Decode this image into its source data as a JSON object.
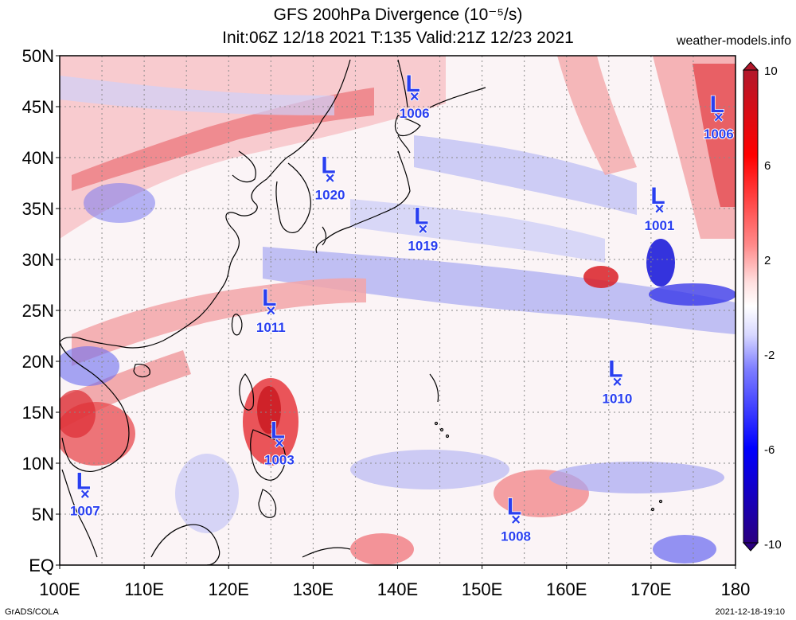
{
  "header": {
    "title_line1": "GFS 200hPa Divergence (10⁻⁵/s)",
    "title_line2": "Init:06Z 12/18 2021 T:135 Valid:21Z 12/23 2021",
    "credit": "weather-models.info"
  },
  "footer": {
    "left": "GrADS/COLA",
    "right": "2021-12-18-19:10"
  },
  "map": {
    "lon_labels": [
      "100E",
      "110E",
      "120E",
      "130E",
      "140E",
      "150E",
      "160E",
      "170E",
      "180"
    ],
    "lat_labels": [
      "50N",
      "45N",
      "40N",
      "35N",
      "30N",
      "25N",
      "20N",
      "15N",
      "10N",
      "5N",
      "EQ"
    ],
    "colorbar": {
      "labels": [
        "10",
        "6",
        "2",
        "-2",
        "-6",
        "-10"
      ],
      "colors_top_to_bottom": [
        "#b2182b",
        "#ff0000",
        "#ff8080",
        "#ffd0d0",
        "#ffffff",
        "#d0d0ff",
        "#8080ff",
        "#0000ff",
        "#2b0080"
      ]
    },
    "lows": [
      {
        "label": "L",
        "pressure": "1006",
        "lon": 142,
        "lat": 46
      },
      {
        "label": "L",
        "pressure": "1006",
        "lon": 178,
        "lat": 44
      },
      {
        "label": "L",
        "pressure": "1020",
        "lon": 132,
        "lat": 38
      },
      {
        "label": "L",
        "pressure": "1019",
        "lon": 143,
        "lat": 33
      },
      {
        "label": "L",
        "pressure": "1001",
        "lon": 171,
        "lat": 35
      },
      {
        "label": "L",
        "pressure": "1011",
        "lon": 125,
        "lat": 25
      },
      {
        "label": "L",
        "pressure": "1010",
        "lon": 166,
        "lat": 18
      },
      {
        "label": "L",
        "pressure": "1003",
        "lon": 126,
        "lat": 12
      },
      {
        "label": "L",
        "pressure": "1007",
        "lon": 103,
        "lat": 7
      },
      {
        "label": "L",
        "pressure": "1008",
        "lon": 154,
        "lat": 4.5
      }
    ]
  }
}
